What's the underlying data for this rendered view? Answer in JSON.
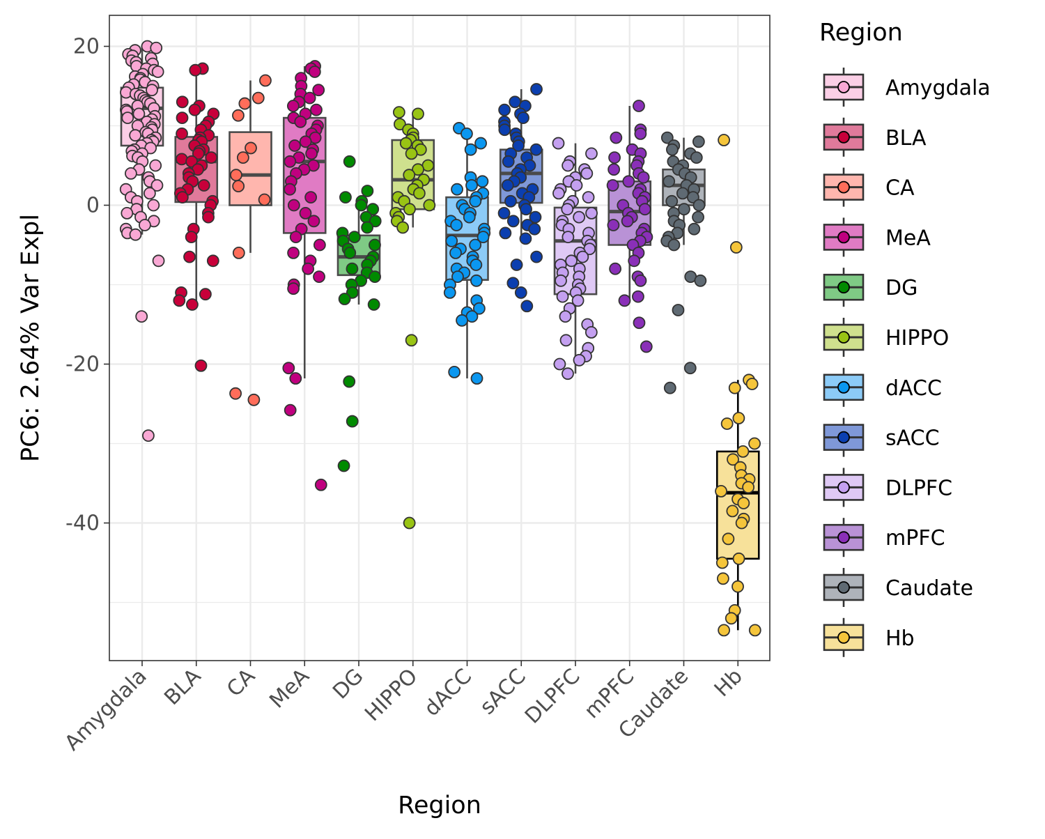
{
  "chart_data": {
    "type": "box",
    "xlabel": "Region",
    "ylabel": "PC6: 2.64% Var Expl",
    "ylim": [
      -57,
      24
    ],
    "yticks": [
      20,
      0,
      -20,
      -40
    ],
    "ytick_labels": [
      "20",
      "0",
      "-20",
      "-40"
    ],
    "grid": true,
    "legend": {
      "title": "Region",
      "position": "right"
    },
    "categories": [
      "Amygdala",
      "BLA",
      "CA",
      "MeA",
      "DG",
      "HIPPO",
      "dACC",
      "sACC",
      "DLPFC",
      "mPFC",
      "Caudate",
      "Hb"
    ],
    "series": [
      {
        "name": "Amygdala",
        "fill": "#fbcfe6",
        "point": "#f9a8d4",
        "box": {
          "q1": 7.5,
          "median": 12.2,
          "q3": 14.8,
          "whisker_low": -3.7,
          "whisker_high": 20
        },
        "outliers": [
          -7,
          -14,
          -29
        ],
        "points": [
          20,
          19.8,
          19.5,
          19,
          18.8,
          18.5,
          18.2,
          18,
          17.8,
          17.5,
          17.2,
          17,
          16.8,
          16.5,
          16.2,
          16,
          15.8,
          15.5,
          15.2,
          15,
          14.8,
          14.5,
          14.2,
          14,
          13.8,
          13.5,
          13.2,
          13,
          12.8,
          12.5,
          12.2,
          12,
          11.8,
          11.5,
          11.2,
          11,
          10.8,
          10.5,
          10.2,
          10,
          9.8,
          9.5,
          9.2,
          9,
          8.8,
          8.5,
          8.2,
          8,
          7.8,
          7.5,
          7.2,
          7,
          6.8,
          6.5,
          6.2,
          6,
          5.5,
          5,
          4.5,
          4,
          3.5,
          3,
          2.5,
          2,
          1.5,
          1,
          0.5,
          0,
          -0.5,
          -1,
          -1.5,
          -2,
          -2.5,
          -3,
          -3.5,
          -3.7,
          -7,
          -14,
          -29
        ]
      },
      {
        "name": "BLA",
        "fill": "#e07a9b",
        "point": "#c8003a",
        "box": {
          "q1": 0.4,
          "median": 5.5,
          "q3": 8.6,
          "whisker_low": -12.5,
          "whisker_high": 17.2
        },
        "outliers": [
          -20.2
        ],
        "points": [
          17.2,
          17,
          13,
          12.5,
          12,
          11.5,
          11,
          10.5,
          10,
          9.5,
          9,
          8.8,
          8.5,
          8.2,
          8,
          7.5,
          7,
          6.8,
          6.5,
          6,
          5.8,
          5.5,
          5,
          4.5,
          4,
          3.5,
          3,
          2.5,
          2,
          1.5,
          1,
          0.5,
          0,
          -1,
          -1.5,
          -3,
          -4,
          -6.5,
          -7,
          -11,
          -11.2,
          -12,
          -12.5,
          -20.2
        ]
      },
      {
        "name": "CA",
        "fill": "#ffb6ae",
        "point": "#ff6d5a",
        "box": {
          "q1": 0,
          "median": 3.8,
          "q3": 9.2,
          "whisker_low": -6,
          "whisker_high": 15.7
        },
        "outliers": [
          -23.7,
          -24.5
        ],
        "points": [
          15.7,
          13.5,
          12.8,
          11.3,
          7.2,
          6,
          3.8,
          2.4,
          0.7,
          -6,
          -23.7,
          -24.5
        ]
      },
      {
        "name": "MeA",
        "fill": "#e07bc4",
        "point": "#c0007f",
        "box": {
          "q1": -3.5,
          "median": 5.5,
          "q3": 11,
          "whisker_low": -21.8,
          "whisker_high": 17.5
        },
        "outliers": [
          -25.8,
          -35.2
        ],
        "points": [
          17.5,
          17.2,
          16.8,
          16,
          15,
          14.5,
          14,
          13.5,
          13,
          12.5,
          12,
          11.5,
          11,
          10.5,
          10,
          9.5,
          9,
          8.5,
          8,
          7.5,
          7,
          6.5,
          6,
          5.5,
          5,
          4.5,
          4,
          3,
          2,
          1,
          0,
          -1,
          -2,
          -3,
          -4,
          -5,
          -6,
          -7,
          -8,
          -9,
          -10,
          -10.5,
          -20.5,
          -21.8,
          -25.8,
          -35.2
        ]
      },
      {
        "name": "DG",
        "fill": "#7fca85",
        "point": "#008a00",
        "box": {
          "q1": -8.8,
          "median": -6.5,
          "q3": -3.8,
          "whisker_low": -12.5,
          "whisker_high": 0.5
        },
        "outliers": [
          5.5,
          1.8,
          -22.2,
          -27.2,
          -32.8
        ],
        "points": [
          5.5,
          1.8,
          1,
          0.5,
          0,
          -0.5,
          -1.5,
          -2,
          -2.8,
          -3.5,
          -4,
          -4.5,
          -5,
          -5.5,
          -6,
          -6.5,
          -7,
          -7.5,
          -8,
          -8.5,
          -9,
          -9.5,
          -10,
          -11,
          -11.8,
          -12.5,
          -22.2,
          -27.2,
          -32.8
        ]
      },
      {
        "name": "HIPPO",
        "fill": "#cfe08e",
        "point": "#99c414",
        "box": {
          "q1": -0.5,
          "median": 3.2,
          "q3": 8.2,
          "whisker_low": -2.8,
          "whisker_high": 11.7
        },
        "outliers": [
          -17,
          -40
        ],
        "points": [
          11.7,
          11.5,
          10.2,
          9.5,
          9,
          8.5,
          8.2,
          7.8,
          7.5,
          7,
          6.5,
          5,
          4.5,
          3.8,
          3.2,
          2.5,
          2,
          1.5,
          1,
          0.5,
          0,
          -0.5,
          -1,
          -1.5,
          -2,
          -2.8,
          -17,
          -40
        ]
      },
      {
        "name": "dACC",
        "fill": "#8ccbf7",
        "point": "#0b97f0",
        "box": {
          "q1": -9.4,
          "median": -3.8,
          "q3": 1,
          "whisker_low": -21.8,
          "whisker_high": 9.7
        },
        "outliers": [],
        "points": [
          9.7,
          9,
          7.8,
          7,
          3.5,
          3,
          2.5,
          2,
          1.5,
          1,
          0.5,
          0,
          -0.5,
          -1,
          -1.5,
          -2,
          -2.5,
          -3,
          -3.5,
          -4,
          -4.5,
          -5,
          -5.5,
          -6,
          -6.5,
          -7,
          -7.5,
          -8,
          -8.5,
          -9,
          -9.5,
          -10,
          -11,
          -12,
          -13,
          -13.5,
          -14,
          -14.5,
          -21,
          -21.8
        ]
      },
      {
        "name": "sACC",
        "fill": "#7f98d8",
        "point": "#0b3fb0",
        "box": {
          "q1": 0.3,
          "median": 4,
          "q3": 7,
          "whisker_low": -4.2,
          "whisker_high": 14.6
        },
        "outliers": [
          -6.5,
          -7.5,
          -9.8,
          -11,
          -12.7
        ],
        "points": [
          14.6,
          13,
          12.5,
          12,
          11.5,
          11,
          10.5,
          10,
          9.5,
          9,
          8.5,
          8,
          7.5,
          7,
          6.5,
          6,
          5.5,
          5,
          4.5,
          4,
          3.5,
          3,
          2.5,
          2,
          1.5,
          1,
          0.5,
          0,
          -0.5,
          -1,
          -1.5,
          -2,
          -2.5,
          -3,
          -3.5,
          -4.2,
          -6.5,
          -7.5,
          -9.8,
          -11,
          -12.7
        ]
      },
      {
        "name": "DLPFC",
        "fill": "#dfc9f5",
        "point": "#c4a0f0",
        "box": {
          "q1": -11.2,
          "median": -4.5,
          "q3": -0.3,
          "whisker_low": -21.2,
          "whisker_high": 7.8
        },
        "outliers": [],
        "points": [
          7.8,
          6.5,
          5.5,
          5,
          4.5,
          4,
          3.5,
          3,
          2.5,
          2,
          1.5,
          1,
          0.5,
          0,
          -0.5,
          -1,
          -1.5,
          -2,
          -2.5,
          -3,
          -3.5,
          -4,
          -4.5,
          -5,
          -5.5,
          -6,
          -6.5,
          -7,
          -7.5,
          -8,
          -8.5,
          -9,
          -9.5,
          -10,
          -10.5,
          -11,
          -11.5,
          -12,
          -13,
          -14,
          -15,
          -16,
          -17,
          -18,
          -19,
          -19.5,
          -20,
          -21.2
        ]
      },
      {
        "name": "mPFC",
        "fill": "#b992d6",
        "point": "#8a2fb8",
        "box": {
          "q1": -5,
          "median": -0.8,
          "q3": 3,
          "whisker_low": -12,
          "whisker_high": 12.5
        },
        "outliers": [
          -14.8,
          -17.8
        ],
        "points": [
          12.5,
          9.5,
          9,
          8.5,
          7,
          6.5,
          6,
          5.5,
          5,
          4.5,
          4,
          3.5,
          3,
          2.5,
          2,
          1.5,
          1,
          0.5,
          0,
          -0.5,
          -1,
          -1.5,
          -2,
          -2.5,
          -3,
          -3.5,
          -4,
          -4.5,
          -5,
          -6,
          -7,
          -8,
          -9,
          -9.5,
          -11.5,
          -12,
          -14.8,
          -17.8
        ]
      },
      {
        "name": "Caudate",
        "fill": "#aeb3ba",
        "point": "#5f6a73",
        "box": {
          "q1": 0,
          "median": 2.5,
          "q3": 4.5,
          "whisker_low": -5,
          "whisker_high": 8.5
        },
        "outliers": [
          -9,
          -9.5,
          -13.2,
          -20.5,
          -23
        ],
        "points": [
          8.5,
          8,
          7.5,
          7,
          6.5,
          6,
          5.5,
          5,
          4.5,
          4,
          3.5,
          3,
          2.5,
          2,
          1.5,
          1,
          0.5,
          0,
          -0.5,
          -1,
          -1.5,
          -2,
          -2.5,
          -3,
          -3.5,
          -4,
          -4.5,
          -5,
          -9,
          -9.5,
          -13.2,
          -20.5,
          -23
        ]
      },
      {
        "name": "Hb",
        "fill": "#f7e19a",
        "point": "#f5c53b",
        "box": {
          "q1": -44.5,
          "median": -36.2,
          "q3": -31,
          "whisker_low": -53.5,
          "whisker_high": -22
        },
        "outliers": [
          8.2,
          -5.3
        ],
        "points": [
          8.2,
          -5.3,
          -22,
          -22.5,
          -23,
          -26.8,
          -27.5,
          -30,
          -31,
          -32,
          -33,
          -34,
          -34.5,
          -35,
          -35.5,
          -36,
          -37,
          -37.5,
          -38.5,
          -39.5,
          -40,
          -42,
          -44.5,
          -45,
          -47,
          -48,
          -51,
          -52,
          -53.5,
          -53.5
        ]
      }
    ]
  }
}
